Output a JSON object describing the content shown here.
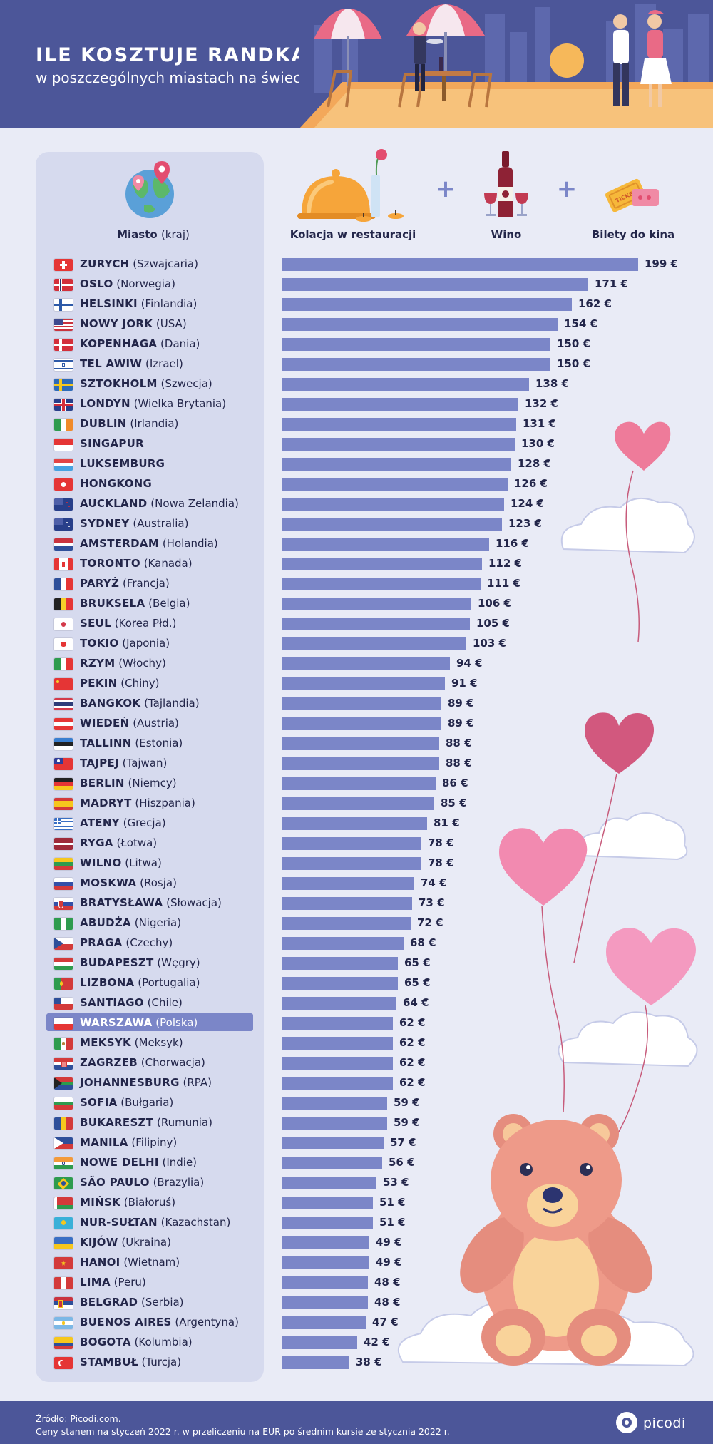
{
  "header": {
    "title": "ILE KOSZTUJE RANDKA",
    "subtitle": "w poszczególnych miastach na świecie",
    "illustration": "restaurant-terrace-couple-waiter",
    "background": "#4c5699"
  },
  "columns": {
    "city_label": "Miasto",
    "city_sublabel": "(kraj)",
    "dinner_label": "Kolacja w restauracji",
    "wine_label": "Wino",
    "cinema_label": "Bilety do kina",
    "plus_symbol": "+",
    "icons": [
      "globe-pin-icon",
      "cloche-icon",
      "wine-icon",
      "ticket-icon"
    ]
  },
  "colors": {
    "bar": "#7b86c8",
    "highlight": "#7b86c8",
    "panel": "#d6daee",
    "page_background": "#e9ebf6",
    "text": "#23264a"
  },
  "currency_suffix": " €",
  "chart_data": {
    "type": "bar",
    "orientation": "horizontal",
    "unit": "€",
    "highlighted_city": "WARSZAWA",
    "rows": [
      {
        "city": "ZURYCH",
        "country": "(Szwajcaria)",
        "value": 199,
        "flag": "ch"
      },
      {
        "city": "OSLO",
        "country": "(Norwegia)",
        "value": 171,
        "flag": "no"
      },
      {
        "city": "HELSINKI",
        "country": "(Finlandia)",
        "value": 162,
        "flag": "fi"
      },
      {
        "city": "NOWY JORK",
        "country": "(USA)",
        "value": 154,
        "flag": "us"
      },
      {
        "city": "KOPENHAGA",
        "country": "(Dania)",
        "value": 150,
        "flag": "dk"
      },
      {
        "city": "TEL AWIW",
        "country": "(Izrael)",
        "value": 150,
        "flag": "il"
      },
      {
        "city": "SZTOKHOLM",
        "country": "(Szwecja)",
        "value": 138,
        "flag": "se"
      },
      {
        "city": "LONDYN",
        "country": "(Wielka Brytania)",
        "value": 132,
        "flag": "gb"
      },
      {
        "city": "DUBLIN",
        "country": "(Irlandia)",
        "value": 131,
        "flag": "ie"
      },
      {
        "city": "SINGAPUR",
        "country": "",
        "value": 130,
        "flag": "sg"
      },
      {
        "city": "LUKSEMBURG",
        "country": "",
        "value": 128,
        "flag": "lu"
      },
      {
        "city": "HONGKONG",
        "country": "",
        "value": 126,
        "flag": "hk"
      },
      {
        "city": "AUCKLAND",
        "country": "(Nowa Zelandia)",
        "value": 124,
        "flag": "nz"
      },
      {
        "city": "SYDNEY",
        "country": "(Australia)",
        "value": 123,
        "flag": "au"
      },
      {
        "city": "AMSTERDAM",
        "country": "(Holandia)",
        "value": 116,
        "flag": "nl"
      },
      {
        "city": "TORONTO",
        "country": "(Kanada)",
        "value": 112,
        "flag": "ca"
      },
      {
        "city": "PARYŻ",
        "country": "(Francja)",
        "value": 111,
        "flag": "fr"
      },
      {
        "city": "BRUKSELA",
        "country": "(Belgia)",
        "value": 106,
        "flag": "be"
      },
      {
        "city": "SEUL",
        "country": "(Korea Płd.)",
        "value": 105,
        "flag": "kr"
      },
      {
        "city": "TOKIO",
        "country": "(Japonia)",
        "value": 103,
        "flag": "jp"
      },
      {
        "city": "RZYM",
        "country": "(Włochy)",
        "value": 94,
        "flag": "it"
      },
      {
        "city": "PEKIN",
        "country": "(Chiny)",
        "value": 91,
        "flag": "cn"
      },
      {
        "city": "BANGKOK",
        "country": "(Tajlandia)",
        "value": 89,
        "flag": "th"
      },
      {
        "city": "WIEDEŃ",
        "country": "(Austria)",
        "value": 89,
        "flag": "at"
      },
      {
        "city": "TALLINN",
        "country": "(Estonia)",
        "value": 88,
        "flag": "ee"
      },
      {
        "city": "TAJPEJ",
        "country": "(Tajwan)",
        "value": 88,
        "flag": "tw"
      },
      {
        "city": "BERLIN",
        "country": "(Niemcy)",
        "value": 86,
        "flag": "de"
      },
      {
        "city": "MADRYT",
        "country": "(Hiszpania)",
        "value": 85,
        "flag": "es"
      },
      {
        "city": "ATENY",
        "country": "(Grecja)",
        "value": 81,
        "flag": "gr"
      },
      {
        "city": "RYGA",
        "country": "(Łotwa)",
        "value": 78,
        "flag": "lv"
      },
      {
        "city": "WILNO",
        "country": "(Litwa)",
        "value": 78,
        "flag": "lt"
      },
      {
        "city": "MOSKWA",
        "country": "(Rosja)",
        "value": 74,
        "flag": "ru"
      },
      {
        "city": "BRATYSŁAWA",
        "country": "(Słowacja)",
        "value": 73,
        "flag": "sk"
      },
      {
        "city": "ABUDŻA",
        "country": "(Nigeria)",
        "value": 72,
        "flag": "ng"
      },
      {
        "city": "PRAGA",
        "country": "(Czechy)",
        "value": 68,
        "flag": "cz"
      },
      {
        "city": "BUDAPESZT",
        "country": "(Węgry)",
        "value": 65,
        "flag": "hu"
      },
      {
        "city": "LIZBONA",
        "country": "(Portugalia)",
        "value": 65,
        "flag": "pt"
      },
      {
        "city": "SANTIAGO",
        "country": "(Chile)",
        "value": 64,
        "flag": "cl"
      },
      {
        "city": "WARSZAWA",
        "country": "(Polska)",
        "value": 62,
        "flag": "pl"
      },
      {
        "city": "MEKSYK",
        "country": "(Meksyk)",
        "value": 62,
        "flag": "mx"
      },
      {
        "city": "ZAGRZEB",
        "country": "(Chorwacja)",
        "value": 62,
        "flag": "hr"
      },
      {
        "city": "JOHANNESBURG",
        "country": "(RPA)",
        "value": 62,
        "flag": "za"
      },
      {
        "city": "SOFIA",
        "country": "(Bułgaria)",
        "value": 59,
        "flag": "bg"
      },
      {
        "city": "BUKARESZT",
        "country": "(Rumunia)",
        "value": 59,
        "flag": "ro"
      },
      {
        "city": "MANILA",
        "country": "(Filipiny)",
        "value": 57,
        "flag": "ph"
      },
      {
        "city": "NOWE DELHI",
        "country": "(Indie)",
        "value": 56,
        "flag": "in"
      },
      {
        "city": "SÃO PAULO",
        "country": "(Brazylia)",
        "value": 53,
        "flag": "br"
      },
      {
        "city": "MIŃSK",
        "country": "(Białoruś)",
        "value": 51,
        "flag": "by"
      },
      {
        "city": "NUR-SUŁTAN",
        "country": "(Kazachstan)",
        "value": 51,
        "flag": "kz"
      },
      {
        "city": "KIJÓW",
        "country": "(Ukraina)",
        "value": 49,
        "flag": "ua"
      },
      {
        "city": "HANOI",
        "country": "(Wietnam)",
        "value": 49,
        "flag": "vn"
      },
      {
        "city": "LIMA",
        "country": "(Peru)",
        "value": 48,
        "flag": "pe"
      },
      {
        "city": "BELGRAD",
        "country": "(Serbia)",
        "value": 48,
        "flag": "rs"
      },
      {
        "city": "BUENOS AIRES",
        "country": "(Argentyna)",
        "value": 47,
        "flag": "ar"
      },
      {
        "city": "BOGOTA",
        "country": "(Kolumbia)",
        "value": 42,
        "flag": "co"
      },
      {
        "city": "STAMBUŁ",
        "country": "(Turcja)",
        "value": 38,
        "flag": "tr"
      }
    ]
  },
  "decorations": [
    "heart-balloon-icon",
    "cloud-icon",
    "teddy-bear-icon"
  ],
  "footer": {
    "source": "Źródło: Picodi.com.",
    "note": "Ceny stanem na styczeń 2022 r. w przeliczeniu na EUR po średnim kursie ze stycznia 2022 r.",
    "brand": "picodi"
  }
}
